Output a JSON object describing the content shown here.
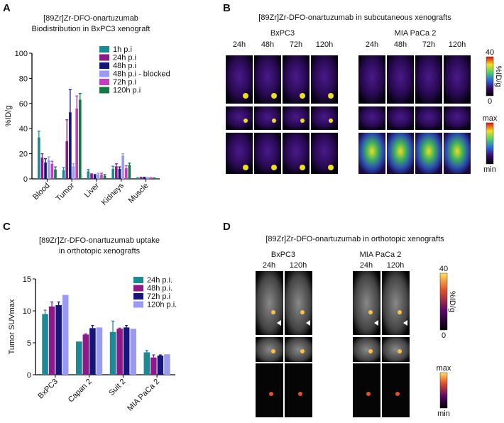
{
  "panels": {
    "A": "A",
    "B": "B",
    "C": "C",
    "D": "D"
  },
  "chart_data": [
    {
      "type": "bar",
      "title": "[89Zr]Zr-DFO-onartuzumab",
      "subtitle": "Biodistribution in BxPC3 xenograft",
      "ylabel": "%ID/g",
      "ylim": [
        0,
        100
      ],
      "yticks": [
        "0",
        "20",
        "40",
        "60",
        "80",
        "100"
      ],
      "legend_position": "top-right",
      "categories": [
        "Blood",
        "Tumor",
        "Liver",
        "Kidneys",
        "Muscle"
      ],
      "series": [
        {
          "name": "1h p.i",
          "color": "#1a8a94",
          "values": [
            33,
            7,
            6,
            8,
            0.5
          ],
          "errors": [
            5,
            2,
            1.5,
            2,
            0.3
          ]
        },
        {
          "name": "24h p.i",
          "color": "#8e1a8a",
          "values": [
            17,
            30,
            3.5,
            10,
            1
          ],
          "errors": [
            3,
            17,
            0.5,
            2,
            0.3
          ]
        },
        {
          "name": "48h p.i",
          "color": "#16167a",
          "values": [
            13,
            53,
            3,
            8,
            1
          ],
          "errors": [
            3,
            18,
            0.5,
            1.5,
            0.3
          ]
        },
        {
          "name": "48h p.i - blocked",
          "color": "#9a9af5",
          "values": [
            15,
            10,
            3.5,
            18.5,
            0.8
          ],
          "errors": [
            2.5,
            2,
            1,
            1.5,
            0.2
          ]
        },
        {
          "name": "72h p.i",
          "color": "#c53ec0",
          "values": [
            12,
            56,
            3.5,
            8.5,
            0.8
          ],
          "errors": [
            2,
            10,
            1,
            2,
            0.2
          ]
        },
        {
          "name": "120h p.i",
          "color": "#147a45",
          "values": [
            7.5,
            63,
            2.5,
            11,
            0.5
          ],
          "errors": [
            2,
            5,
            1,
            1.5,
            0.2
          ]
        }
      ]
    },
    {
      "type": "bar",
      "title": "[89Zr]Zr-DFO-onartuzumab uptake",
      "subtitle": "in orthotopic xenografts",
      "ylabel": "Tumor SUVmax",
      "ylim": [
        0,
        15
      ],
      "yticks": [
        "0",
        "5",
        "10",
        "15"
      ],
      "legend_position": "top-right",
      "categories": [
        "BxPC3",
        "Capan 2",
        "Suit 2",
        "MIA PaCa 2"
      ],
      "series": [
        {
          "name": "24h p.i.",
          "color": "#1a8a94",
          "values": [
            9.5,
            5.2,
            6.7,
            3.5
          ],
          "errors": [
            0.6,
            0,
            1.7,
            0.3
          ]
        },
        {
          "name": "48h p.i.",
          "color": "#8e1a8a",
          "values": [
            10.7,
            6.3,
            7.2,
            2.7
          ],
          "errors": [
            0.7,
            0.1,
            0.1,
            0.4
          ]
        },
        {
          "name": "72h p.i",
          "color": "#16167a",
          "values": [
            10.9,
            7.3,
            7.4,
            3.0
          ],
          "errors": [
            0.5,
            0.4,
            0.3,
            0.1
          ]
        },
        {
          "name": "120h p.i.",
          "color": "#9a9af5",
          "values": [
            12.5,
            7.4,
            7.2,
            3.2
          ],
          "errors": [
            0,
            0,
            0,
            0
          ]
        }
      ]
    }
  ],
  "B": {
    "title": "[89Zr]Zr-DFO-onartuzumab in subcutaneous xenografts",
    "groups": [
      {
        "name": "BxPC3",
        "times": [
          "24h",
          "48h",
          "72h",
          "120h"
        ]
      },
      {
        "name": "MIA PaCa 2",
        "times": [
          "24h",
          "48h",
          "72h",
          "120h"
        ]
      }
    ],
    "scale1": {
      "max": "40",
      "min": "0",
      "unit": "%ID/g"
    },
    "scale2": {
      "max": "max",
      "min": "min"
    }
  },
  "D": {
    "title": "[89Zr]Zr-DFO-onartuzumab in orthotopic xenografts",
    "groups": [
      {
        "name": "BxPC3",
        "times": [
          "24h",
          "120h"
        ]
      },
      {
        "name": "MIA PaCa 2",
        "times": [
          "24h",
          "120h"
        ]
      }
    ],
    "scale1": {
      "max": "40",
      "min": "0",
      "unit": "%ID/g"
    },
    "scale2": {
      "max": "max",
      "min": "min"
    }
  }
}
